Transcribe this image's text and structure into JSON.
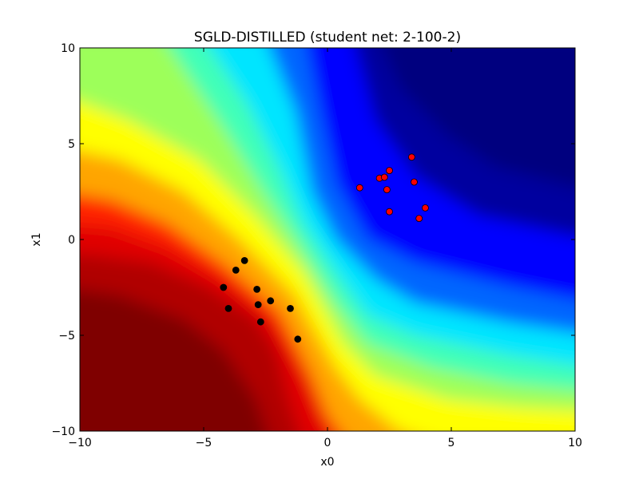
{
  "chart_data": {
    "type": "scatter",
    "title": "SGLD-DISTILLED (student net: 2-100-2)",
    "xlabel": "x0",
    "ylabel": "x1",
    "xlim": [
      -10,
      10
    ],
    "ylim": [
      -10,
      10
    ],
    "xticks": [
      -10,
      -5,
      0,
      5,
      10
    ],
    "yticks": [
      -10,
      -5,
      0,
      5,
      10
    ],
    "xtick_labels": [
      "−10",
      "−5",
      "0",
      "5",
      "10"
    ],
    "ytick_labels": [
      "−10",
      "−5",
      "0",
      "5",
      "10"
    ],
    "grid": false,
    "legend": "none",
    "background": {
      "type": "filled-contour",
      "colormap": "jet",
      "description_colors": [
        "#00007f",
        "#0000ff",
        "#00ffff",
        "#ffff00",
        "#ff0000",
        "#7f0000"
      ]
    },
    "series": [
      {
        "color": "#ff0000",
        "points": [
          {
            "x": 1.3,
            "y": 2.7
          },
          {
            "x": 2.1,
            "y": 3.2
          },
          {
            "x": 2.3,
            "y": 3.25
          },
          {
            "x": 2.5,
            "y": 3.6
          },
          {
            "x": 2.4,
            "y": 2.6
          },
          {
            "x": 2.5,
            "y": 1.45
          },
          {
            "x": 3.4,
            "y": 4.3
          },
          {
            "x": 3.5,
            "y": 3.0
          },
          {
            "x": 3.7,
            "y": 1.1
          },
          {
            "x": 3.95,
            "y": 1.65
          }
        ]
      },
      {
        "color": "#000000",
        "points": [
          {
            "x": -3.35,
            "y": -1.1
          },
          {
            "x": -3.7,
            "y": -1.6
          },
          {
            "x": -4.2,
            "y": -2.5
          },
          {
            "x": -4.0,
            "y": -3.6
          },
          {
            "x": -2.85,
            "y": -2.6
          },
          {
            "x": -2.8,
            "y": -3.4
          },
          {
            "x": -2.3,
            "y": -3.2
          },
          {
            "x": -2.7,
            "y": -4.3
          },
          {
            "x": -1.5,
            "y": -3.6
          },
          {
            "x": -1.2,
            "y": -5.2
          }
        ]
      }
    ]
  }
}
